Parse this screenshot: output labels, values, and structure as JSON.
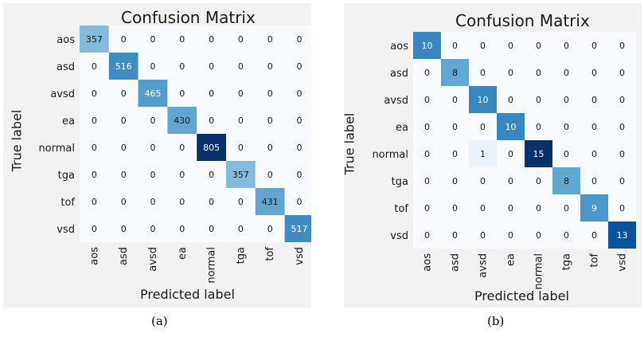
{
  "colors": {
    "low": "#f7fbff",
    "high": "#08306b",
    "panel_bg": "#f2f2f2"
  },
  "chart_data": [
    {
      "type": "heatmap",
      "title": "Confusion Matrix",
      "xlabel": "Predicted label",
      "ylabel": "True label",
      "caption": "(a)",
      "categories": [
        "aos",
        "asd",
        "avsd",
        "ea",
        "normal",
        "tga",
        "tof",
        "vsd"
      ],
      "matrix": [
        [
          357,
          0,
          0,
          0,
          0,
          0,
          0,
          0
        ],
        [
          0,
          516,
          0,
          0,
          0,
          0,
          0,
          0
        ],
        [
          0,
          0,
          465,
          0,
          0,
          0,
          0,
          0
        ],
        [
          0,
          0,
          0,
          430,
          0,
          0,
          0,
          0
        ],
        [
          0,
          0,
          0,
          0,
          805,
          0,
          0,
          0
        ],
        [
          0,
          0,
          0,
          0,
          0,
          357,
          0,
          0
        ],
        [
          0,
          0,
          0,
          0,
          0,
          0,
          431,
          0
        ],
        [
          0,
          0,
          0,
          0,
          0,
          0,
          0,
          517
        ]
      ],
      "colormap": "Blues",
      "grid": false
    },
    {
      "type": "heatmap",
      "title": "Confusion Matrix",
      "xlabel": "Predicted label",
      "ylabel": "True label",
      "caption": "(b)",
      "categories": [
        "aos",
        "asd",
        "avsd",
        "ea",
        "normal",
        "tga",
        "tof",
        "vsd"
      ],
      "matrix": [
        [
          10,
          0,
          0,
          0,
          0,
          0,
          0,
          0
        ],
        [
          0,
          8,
          0,
          0,
          0,
          0,
          0,
          0
        ],
        [
          0,
          0,
          10,
          0,
          0,
          0,
          0,
          0
        ],
        [
          0,
          0,
          0,
          10,
          0,
          0,
          0,
          0
        ],
        [
          0,
          0,
          1,
          0,
          15,
          0,
          0,
          0
        ],
        [
          0,
          0,
          0,
          0,
          0,
          8,
          0,
          0
        ],
        [
          0,
          0,
          0,
          0,
          0,
          0,
          9,
          0
        ],
        [
          0,
          0,
          0,
          0,
          0,
          0,
          0,
          13
        ]
      ],
      "colormap": "Blues",
      "grid": false
    }
  ]
}
